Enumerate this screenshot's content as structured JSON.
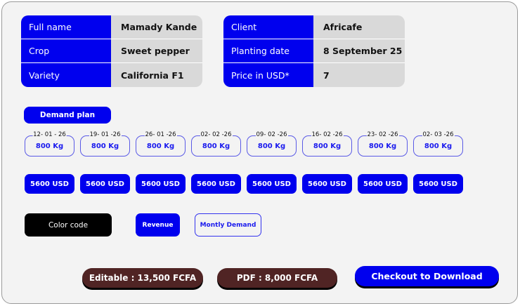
{
  "farmer": [
    {
      "label": "Full name",
      "value": "Mamady Kande"
    },
    {
      "label": "Crop",
      "value": "Sweet pepper"
    },
    {
      "label": "Variety",
      "value": "California F1"
    }
  ],
  "order": [
    {
      "label": "Client",
      "value": "Africafe"
    },
    {
      "label": "Planting date",
      "value": "8 September 25"
    },
    {
      "label": "Price in USD*",
      "value": "7"
    }
  ],
  "demand_plan_label": "Demand plan",
  "weeks": [
    {
      "date": "12- 01 - 26",
      "qty": "800 Kg",
      "usd": "5600 USD"
    },
    {
      "date": "19- 01 -26",
      "qty": "800 Kg",
      "usd": "5600 USD"
    },
    {
      "date": "26- 01 -26",
      "qty": "800 Kg",
      "usd": "5600 USD"
    },
    {
      "date": "02- 02 -26",
      "qty": "800 Kg",
      "usd": "5600 USD"
    },
    {
      "date": "09- 02 -26",
      "qty": "800 Kg",
      "usd": "5600 USD"
    },
    {
      "date": "16- 02 -26",
      "qty": "800 Kg",
      "usd": "5600 USD"
    },
    {
      "date": "23- 02 -26",
      "qty": "800 Kg",
      "usd": "5600 USD"
    },
    {
      "date": "02- 03 -26",
      "qty": "800 Kg",
      "usd": "5600 USD"
    }
  ],
  "legend": {
    "title": "Color code",
    "revenue": "Revenue",
    "demand": "Montly Demand"
  },
  "actions": {
    "editable": "Editable : 13,500 FCFA",
    "pdf": "PDF : 8,000 FCFA",
    "checkout": "Checkout to Download"
  },
  "colors": {
    "accent": "#0000ee",
    "price": "#502424",
    "panel": "#f3f3f3"
  }
}
